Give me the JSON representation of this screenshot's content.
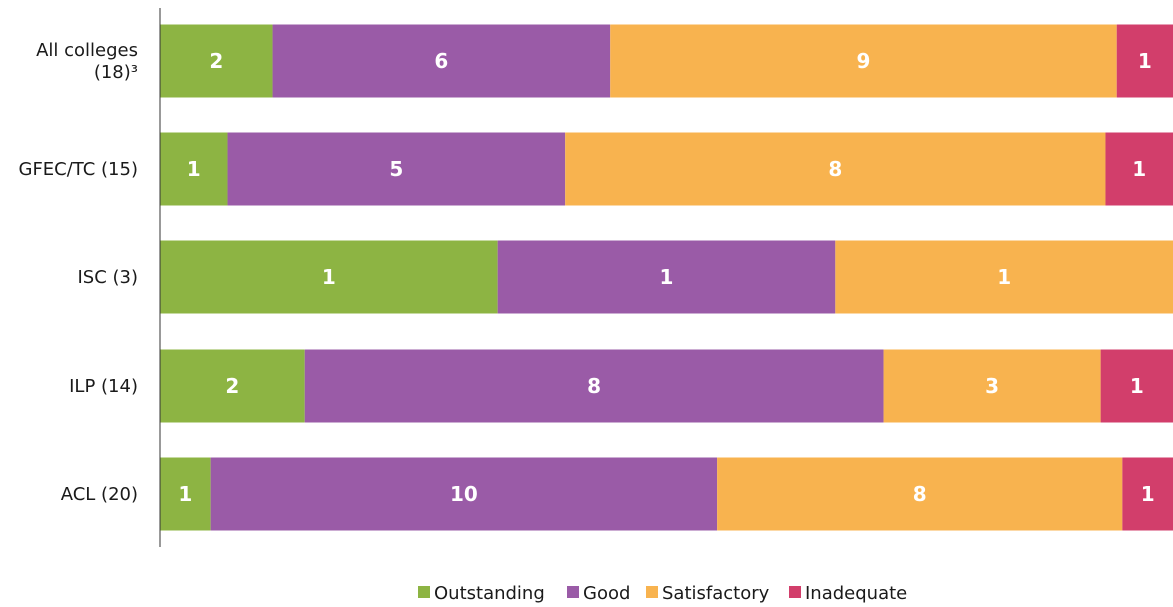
{
  "colors": {
    "outstanding": "#8db443",
    "good": "#9a5ba7",
    "satisfactory": "#f8b34f",
    "inadequate": "#d23e6b"
  },
  "chart_data": {
    "type": "bar",
    "orientation": "horizontal",
    "stacked": "percent",
    "categories": [
      [
        "All colleges",
        "(18)³"
      ],
      [
        "GFEC/TC (15)"
      ],
      [
        "ISC (3)"
      ],
      [
        "ILP (14)"
      ],
      [
        "ACL (20)"
      ]
    ],
    "series": [
      {
        "name": "Outstanding",
        "color_key": "outstanding",
        "values": [
          2,
          1,
          1,
          2,
          1
        ]
      },
      {
        "name": "Good",
        "color_key": "good",
        "values": [
          6,
          5,
          1,
          8,
          10
        ]
      },
      {
        "name": "Satisfactory",
        "color_key": "satisfactory",
        "values": [
          9,
          8,
          1,
          3,
          8
        ]
      },
      {
        "name": "Inadequate",
        "color_key": "inadequate",
        "values": [
          1,
          1,
          0,
          1,
          1
        ]
      }
    ],
    "legend_position": "bottom-center",
    "grid": false
  }
}
